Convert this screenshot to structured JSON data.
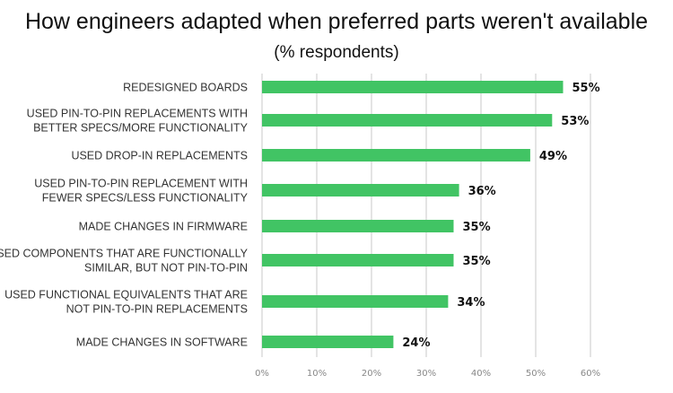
{
  "chart_data": {
    "type": "bar",
    "orientation": "horizontal",
    "title": "How engineers adapted when preferred parts weren't available",
    "subtitle": "(% respondents)",
    "categories": [
      [
        "REDESIGNED BOARDS"
      ],
      [
        "USED PIN-TO-PIN REPLACEMENTS WITH",
        "BETTER SPECS/MORE FUNCTIONALITY"
      ],
      [
        "USED DROP-IN REPLACEMENTS"
      ],
      [
        "USED PIN-TO-PIN REPLACEMENT WITH",
        "FEWER SPECS/LESS FUNCTIONALITY"
      ],
      [
        "MADE CHANGES IN FIRMWARE"
      ],
      [
        "USED COMPONENTS THAT ARE FUNCTIONALLY",
        "SIMILAR, BUT NOT PIN-TO-PIN"
      ],
      [
        "USED FUNCTIONAL EQUIVALENTS THAT ARE",
        "NOT PIN-TO-PIN REPLACEMENTS"
      ],
      [
        "MADE CHANGES IN SOFTWARE"
      ]
    ],
    "values": [
      55,
      53,
      49,
      36,
      35,
      35,
      34,
      24
    ],
    "value_labels": [
      "55%",
      "53%",
      "49%",
      "36%",
      "35%",
      "35%",
      "34%",
      "24%"
    ],
    "xlim": [
      0,
      60
    ],
    "xticks": [
      "0%",
      "10%",
      "20%",
      "30%",
      "40%",
      "50%",
      "60%"
    ],
    "grid": true,
    "bar_color": "#41c464"
  }
}
